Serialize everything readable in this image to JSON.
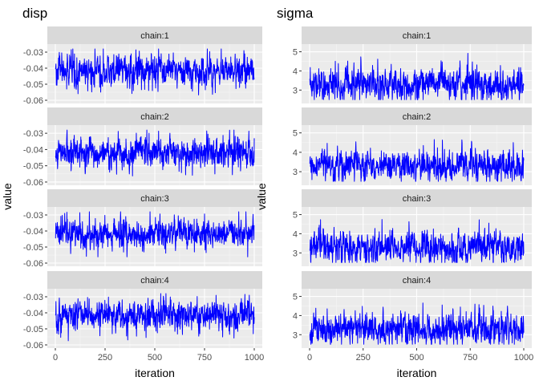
{
  "chart_data": [
    {
      "type": "line",
      "title": "disp",
      "xlabel": "iteration",
      "ylabel": "value",
      "xlim": [
        0,
        1000
      ],
      "ylim": [
        -0.062,
        -0.025
      ],
      "x_ticks": [
        0,
        250,
        500,
        750,
        1000
      ],
      "x_tick_labels": [
        "0",
        "250",
        "500",
        "750",
        "1000"
      ],
      "y_ticks": [
        -0.03,
        -0.04,
        -0.05,
        -0.06
      ],
      "y_tick_labels": [
        "-0.03",
        "-0.04",
        "-0.05",
        "-0.06"
      ],
      "color": "#0000ff",
      "grid": true,
      "trace_summary": {
        "center": -0.0415,
        "spread": 0.0042,
        "min": -0.059,
        "max": -0.028,
        "n_iterations": 1000
      },
      "facets": [
        {
          "strip": "chain:1"
        },
        {
          "strip": "chain:2"
        },
        {
          "strip": "chain:3"
        },
        {
          "strip": "chain:4"
        }
      ]
    },
    {
      "type": "line",
      "title": "sigma",
      "xlabel": "iteration",
      "ylabel": "value",
      "xlim": [
        0,
        1000
      ],
      "ylim": [
        2.3,
        5.4
      ],
      "x_ticks": [
        0,
        250,
        500,
        750,
        1000
      ],
      "x_tick_labels": [
        "0",
        "250",
        "500",
        "750",
        "1000"
      ],
      "y_ticks": [
        5,
        4,
        3
      ],
      "y_tick_labels": [
        "5",
        "4",
        "3"
      ],
      "color": "#0000ff",
      "grid": true,
      "trace_summary": {
        "center": 3.3,
        "spread": 0.38,
        "min": 2.5,
        "max": 5.3,
        "n_iterations": 1000
      },
      "facets": [
        {
          "strip": "chain:1"
        },
        {
          "strip": "chain:2"
        },
        {
          "strip": "chain:3"
        },
        {
          "strip": "chain:4"
        }
      ]
    }
  ]
}
